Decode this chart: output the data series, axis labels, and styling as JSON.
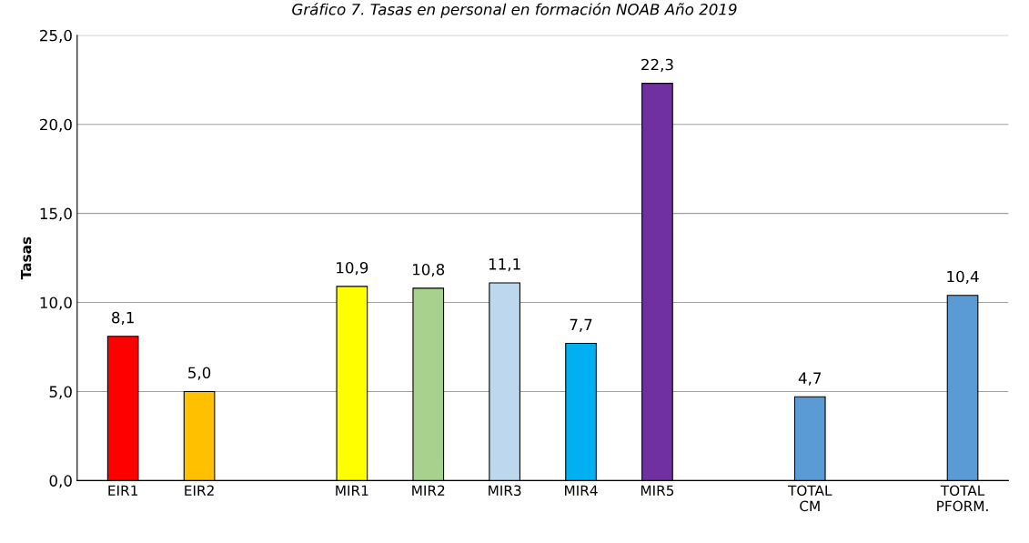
{
  "chart_data": {
    "type": "bar",
    "title": "Gráfico 7. Tasas en personal en formación NOAB Año 2019",
    "ylabel": "Tasas",
    "categories": [
      "EIR1",
      "EIR2",
      null,
      "MIR1",
      "MIR2",
      "MIR3",
      "MIR4",
      "MIR5",
      null,
      "TOTAL\nCM",
      null,
      "TOTAL\nPFORM."
    ],
    "values": [
      8.1,
      5.0,
      null,
      10.9,
      10.8,
      11.1,
      7.7,
      22.3,
      null,
      4.7,
      null,
      10.4
    ],
    "colors": [
      "#ff0000",
      "#ffc000",
      null,
      "#ffff00",
      "#a9d18e",
      "#bdd7ee",
      "#00b0f0",
      "#7030a0",
      null,
      "#5b9bd5",
      null,
      "#5b9bd5"
    ],
    "value_labels": [
      "8,1",
      "5,0",
      null,
      "10,9",
      "10,8",
      "11,1",
      "7,7",
      "22,3",
      null,
      "4,7",
      null,
      "10,4"
    ],
    "ylim": [
      0,
      25
    ],
    "yticks": [
      {
        "value": 0,
        "label": "0,0"
      },
      {
        "value": 5,
        "label": "5,0"
      },
      {
        "value": 10,
        "label": "10,0"
      },
      {
        "value": 15,
        "label": "15,0"
      },
      {
        "value": 20,
        "label": "20,0"
      },
      {
        "value": 25,
        "label": "25,0"
      }
    ],
    "grid": "y",
    "legend": false
  }
}
